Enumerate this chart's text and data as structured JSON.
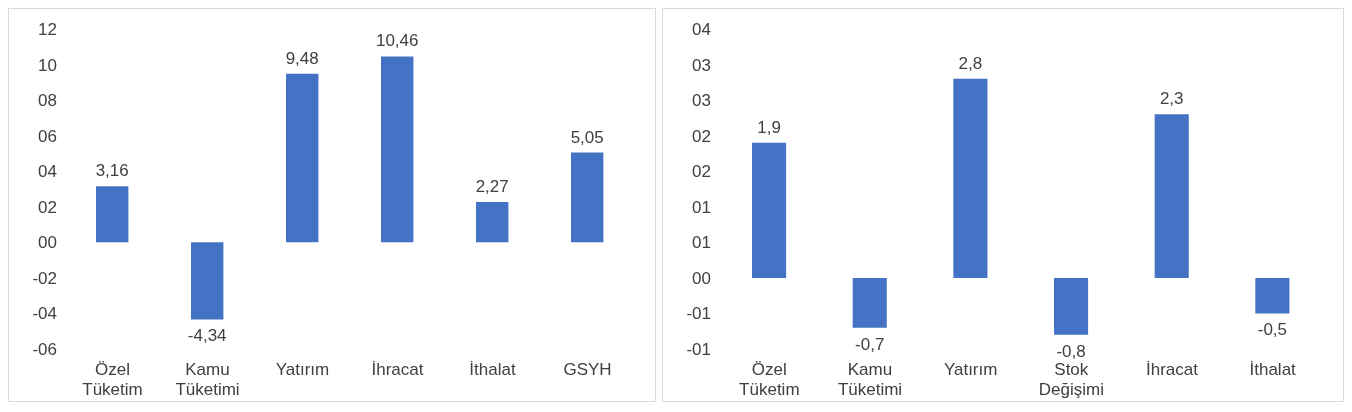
{
  "chart_data": [
    {
      "type": "bar",
      "categories": [
        "Özel Tüketim",
        "Kamu Tüketimi",
        "Yatırım",
        "İhracat",
        "İthalat",
        "GSYH"
      ],
      "values": [
        3.16,
        -4.34,
        9.48,
        10.46,
        2.27,
        5.05
      ],
      "value_labels": [
        "3,16",
        "-4,34",
        "9,48",
        "10,46",
        "2,27",
        "5,05"
      ],
      "color": "#4472c4",
      "ylim": [
        -6,
        12
      ],
      "yticks": [
        12,
        10,
        {
          "value": 8,
          "label": "08"
        },
        {
          "value": 6,
          "label": "06"
        },
        {
          "value": 4,
          "label": "04"
        },
        {
          "value": 2,
          "label": "02"
        },
        {
          "value": 0,
          "label": "00"
        },
        {
          "value": -2,
          "label": "-02"
        },
        {
          "value": -4,
          "label": "-04"
        },
        {
          "value": -6,
          "label": "-06"
        }
      ],
      "grid": false,
      "legend": false
    },
    {
      "type": "bar",
      "categories": [
        "Özel Tüketim",
        "Kamu Tüketimi",
        "Yatırım",
        "Stok Değişimi",
        "İhracat",
        "İthalat"
      ],
      "values": [
        1.9,
        -0.7,
        2.8,
        -0.8,
        2.3,
        -0.5
      ],
      "value_labels": [
        "1,9",
        "-0,7",
        "2,8",
        "-0,8",
        "2,3",
        "-0,5"
      ],
      "color": "#4472c4",
      "ylim": [
        -1,
        3.5
      ],
      "yticks": [
        {
          "value": 3.5,
          "label": "04"
        },
        {
          "value": 3,
          "label": "03"
        },
        {
          "value": 2.5,
          "label": "03"
        },
        {
          "value": 2,
          "label": "02"
        },
        {
          "value": 1.5,
          "label": "02"
        },
        {
          "value": 1,
          "label": "01"
        },
        {
          "value": 0.5,
          "label": "01"
        },
        {
          "value": 0,
          "label": "00"
        },
        {
          "value": -0.5,
          "label": "-01"
        },
        {
          "value": -1,
          "label": "-01"
        }
      ],
      "grid": false,
      "legend": false
    }
  ]
}
